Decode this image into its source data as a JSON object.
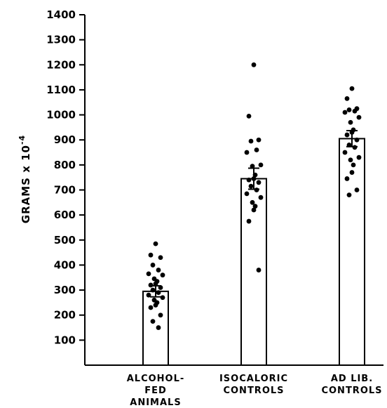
{
  "chart_data": {
    "type": "bar",
    "ylabel": "GRAMS x 10",
    "ylabel_exponent": "-4",
    "ylim": [
      0,
      1400
    ],
    "yticks": [
      100,
      200,
      300,
      400,
      500,
      600,
      700,
      800,
      900,
      1000,
      1100,
      1200,
      1300,
      1400
    ],
    "categories": [
      [
        "ALCOHOL-",
        "FED",
        "ANIMALS"
      ],
      [
        "ISOCALORIC",
        "CONTROLS"
      ],
      [
        "AD LIB.",
        "CONTROLS"
      ]
    ],
    "values": [
      295,
      745,
      905
    ],
    "error": [
      22,
      42,
      32
    ],
    "points": [
      [
        485,
        440,
        430,
        400,
        380,
        365,
        360,
        345,
        335,
        325,
        320,
        310,
        300,
        290,
        280,
        270,
        260,
        250,
        240,
        230,
        200,
        175,
        150
      ],
      [
        1200,
        995,
        900,
        895,
        860,
        850,
        800,
        795,
        760,
        745,
        740,
        730,
        715,
        700,
        685,
        670,
        650,
        635,
        620,
        575,
        380
      ],
      [
        1105,
        1065,
        1025,
        1020,
        1015,
        1010,
        990,
        970,
        940,
        930,
        920,
        900,
        880,
        870,
        850,
        830,
        820,
        800,
        770,
        745,
        700,
        680
      ]
    ],
    "grid": false,
    "colors": {
      "bar_fill": "#ffffff",
      "stroke": "#000000",
      "point": "#000000"
    }
  }
}
